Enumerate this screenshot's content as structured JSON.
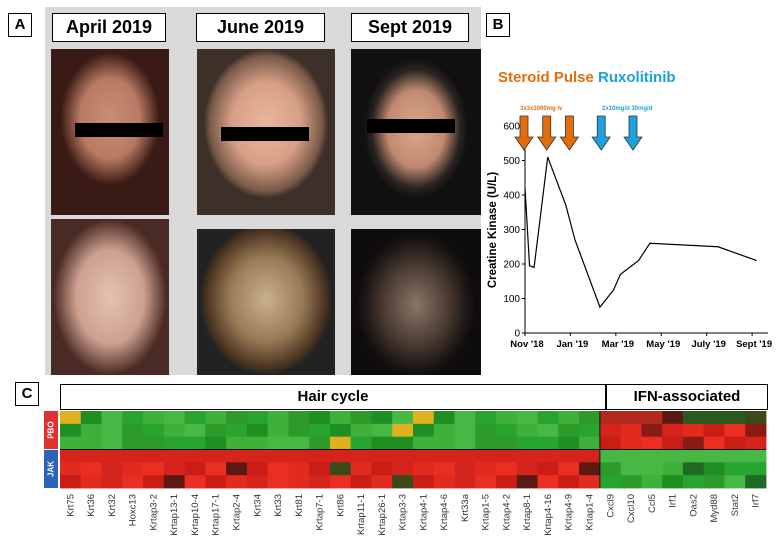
{
  "panel_a": {
    "label": "A",
    "dates": [
      "April 2019",
      "June 2019",
      "Sept 2019"
    ]
  },
  "panel_b": {
    "label": "B",
    "legend_steroid": "Steroid Pulse",
    "legend_rux": "Ruxolitinib",
    "dose_steroid": "3x3x1000mg iv",
    "dose_rux": "2x10mg/d 30mg/d",
    "color_steroid": "#e46c0a",
    "color_rux": "#1fa2db"
  },
  "chart_data": [
    {
      "type": "line",
      "ylabel": "Creatine Kinase (U/L)",
      "xlabel": "",
      "ylim": [
        0,
        600
      ],
      "yticks": [
        0,
        100,
        200,
        300,
        400,
        500,
        600
      ],
      "x_ticks": [
        {
          "label": "Nov '18",
          "x": 0
        },
        {
          "label": "Jan '19",
          "x": 2
        },
        {
          "label": "Mar '19",
          "x": 4
        },
        {
          "label": "May '19",
          "x": 6
        },
        {
          "label": "July '19",
          "x": 8
        },
        {
          "label": "Sept '19",
          "x": 10
        }
      ],
      "xlim": [
        0,
        10.7
      ],
      "series": [
        {
          "x": [
            0,
            0.2,
            0.4,
            1.0,
            1.8,
            2.2,
            3.3,
            3.9,
            4.2,
            5.0,
            5.5,
            8.5,
            10.2
          ],
          "y": [
            420,
            195,
            190,
            510,
            370,
            270,
            75,
            125,
            170,
            210,
            260,
            250,
            210
          ]
        }
      ],
      "steroid_arrows_x": [
        0,
        1.0,
        2.0
      ],
      "rux_arrows_x": [
        3.4,
        4.8
      ]
    },
    {
      "type": "heatmap",
      "groups": [
        "Hair cycle",
        "IFN-associated"
      ],
      "row_groups": [
        "PBO",
        "JAK"
      ],
      "columns": [
        "Krt75",
        "Krt36",
        "Krt32",
        "Hoxc13",
        "Krtap3-2",
        "Krtap13-1",
        "Krtap10-4",
        "Krtap17-1",
        "Krtap2-4",
        "Krt34",
        "Krt33",
        "Krt81",
        "Krtap7-1",
        "Krt86",
        "Krtap11-1",
        "Krtap26-1",
        "Krtap3-3",
        "Krtap4-1",
        "Krtap4-6",
        "Krt33a",
        "Krtap1-5",
        "Krtap4-2",
        "Krtap8-1",
        "Krtap4-16",
        "Krtap4-9",
        "Krtap1-4",
        "Cxcl9",
        "Cxcl10",
        "Ccl5",
        "Irf1",
        "Oas2",
        "Myd88",
        "Stat2",
        "Irf7"
      ],
      "hair_cycle_count": 26,
      "pbo_color": "#e03030",
      "jak_color": "#2a63b8"
    }
  ],
  "panel_c": {
    "label": "C"
  }
}
